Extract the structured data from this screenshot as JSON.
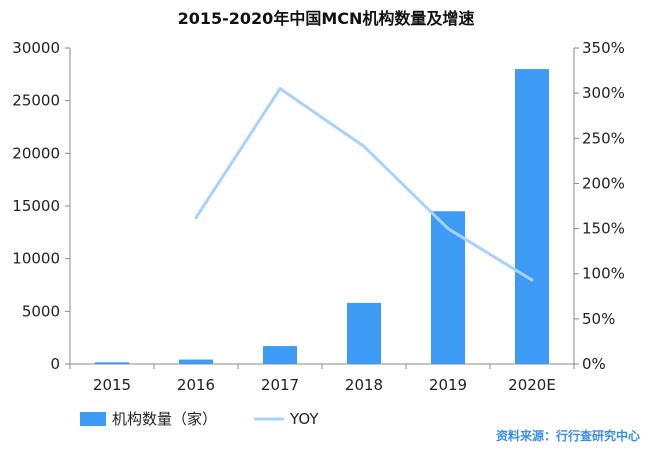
{
  "chart_data": {
    "type": "bar",
    "title": "2015-2020年中国MCN机构数量及增速",
    "categories": [
      "2015",
      "2016",
      "2017",
      "2018",
      "2019",
      "2020E"
    ],
    "series": [
      {
        "name": "机构数量（家）",
        "kind": "bar",
        "axis": "left",
        "color": "#3d9bf5",
        "values": [
          160,
          420,
          1700,
          5800,
          14500,
          28000
        ]
      },
      {
        "name": "YOY",
        "kind": "line",
        "axis": "right",
        "color": "#a8d2fb",
        "values": [
          null,
          162,
          305,
          241,
          150,
          93
        ]
      }
    ],
    "y_left": {
      "ylim": [
        0,
        30000
      ],
      "ticks": [
        "0",
        "5000",
        "10000",
        "15000",
        "20000",
        "25000",
        "30000"
      ]
    },
    "y_right": {
      "ylim": [
        0,
        350
      ],
      "ticks": [
        "0%",
        "50%",
        "100%",
        "150%",
        "200%",
        "250%",
        "300%",
        "350%"
      ]
    },
    "grid": false,
    "legend": "bottom-left"
  },
  "source_text": "资料来源：行行查研究中心"
}
